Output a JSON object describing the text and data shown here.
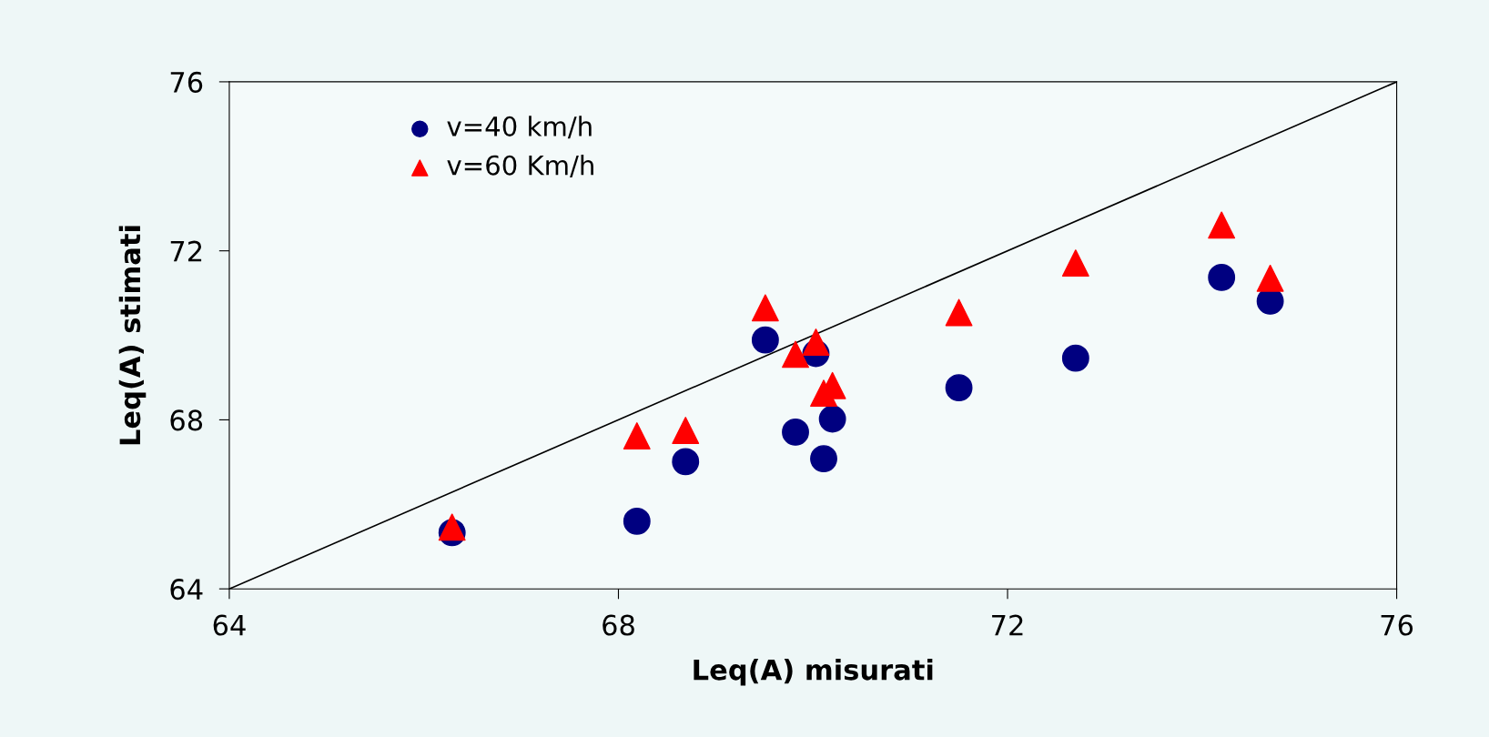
{
  "chart_data": {
    "type": "scatter",
    "xlabel": "Leq(A) misurati",
    "ylabel": "Leq(A) stimati",
    "xlim": [
      64,
      76
    ],
    "ylim": [
      64,
      76
    ],
    "xticks": [
      64,
      68,
      72,
      76
    ],
    "yticks": [
      64,
      68,
      72,
      76
    ],
    "grid": false,
    "legend": "top left",
    "series": [
      {
        "name": "v=40 km/h",
        "color": "#000080",
        "marker": "circle",
        "x": [
          66.29,
          68.19,
          68.69,
          69.51,
          69.82,
          70.03,
          70.11,
          70.2,
          71.5,
          72.7,
          74.2,
          74.7
        ],
        "values": [
          65.33,
          65.6,
          67.01,
          69.89,
          67.71,
          69.57,
          67.08,
          68.02,
          68.76,
          69.46,
          71.37,
          70.81
        ]
      },
      {
        "name": "v=60 Km/h",
        "color": "#ff0000",
        "marker": "triangle",
        "x": [
          66.29,
          68.19,
          68.69,
          69.51,
          69.82,
          70.03,
          70.11,
          70.2,
          71.5,
          72.7,
          74.2,
          74.7
        ],
        "values": [
          65.46,
          67.62,
          67.75,
          70.65,
          69.55,
          69.84,
          68.63,
          68.81,
          70.54,
          71.71,
          72.61,
          71.35
        ]
      },
      {
        "type": "line",
        "color": "#000000",
        "marker": "none",
        "line_style": "solid",
        "x": [
          64,
          76
        ],
        "values": [
          64,
          76
        ]
      }
    ]
  }
}
